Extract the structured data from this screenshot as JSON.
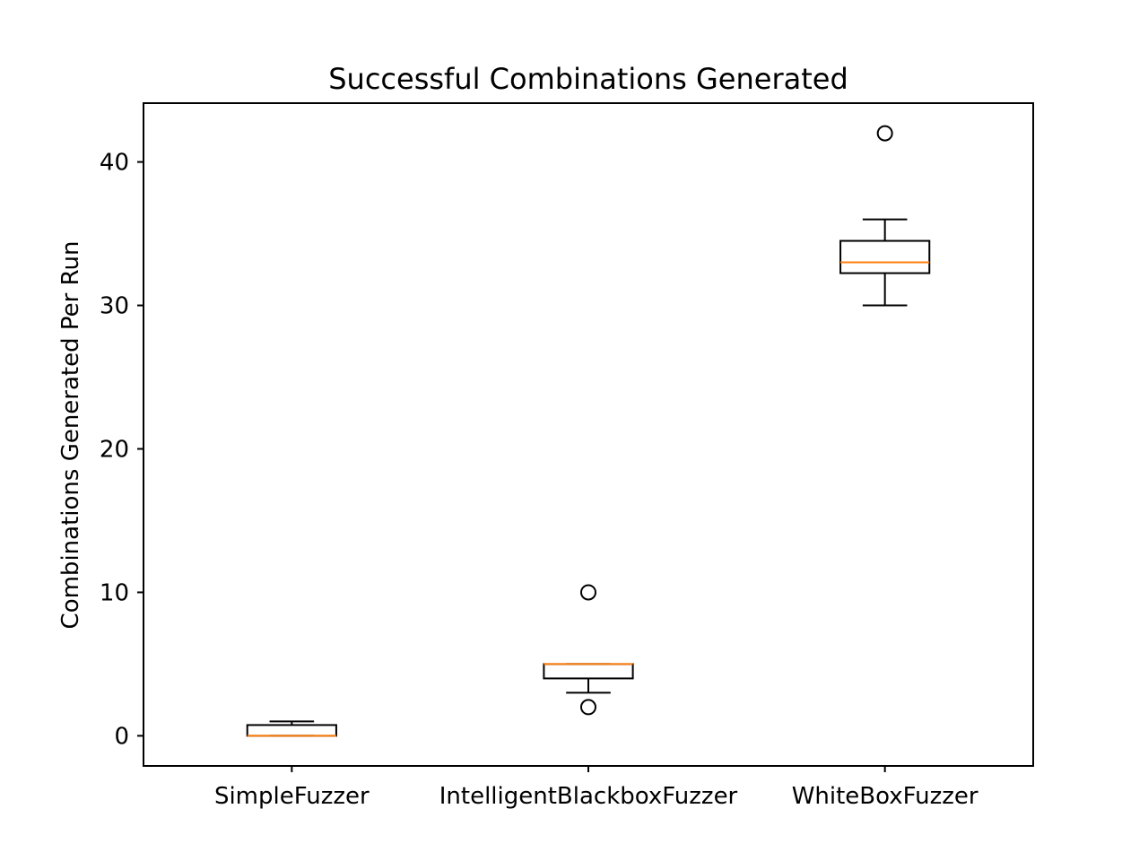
{
  "chart_data": {
    "type": "box",
    "title": "Successful Combinations Generated",
    "xlabel": "",
    "ylabel": "Combinations Generated Per Run",
    "ylim": [
      -2.1,
      44.1
    ],
    "yticks": [
      0,
      10,
      20,
      30,
      40
    ],
    "grid": false,
    "categories": [
      "SimpleFuzzer",
      "IntelligentBlackboxFuzzer",
      "WhiteBoxFuzzer"
    ],
    "boxes": [
      {
        "name": "SimpleFuzzer",
        "whisker_low": 0,
        "q1": 0,
        "median": 0,
        "q3": 0.75,
        "whisker_high": 1,
        "outliers": []
      },
      {
        "name": "IntelligentBlackboxFuzzer",
        "whisker_low": 3,
        "q1": 4,
        "median": 5,
        "q3": 5,
        "whisker_high": 5,
        "outliers": [
          2,
          10
        ]
      },
      {
        "name": "WhiteBoxFuzzer",
        "whisker_low": 30,
        "q1": 32.25,
        "median": 33,
        "q3": 34.5,
        "whisker_high": 36,
        "outliers": [
          42
        ]
      }
    ],
    "colors": {
      "box": "#000000",
      "median": "#ff7f0e",
      "outlier": "#000000"
    }
  }
}
